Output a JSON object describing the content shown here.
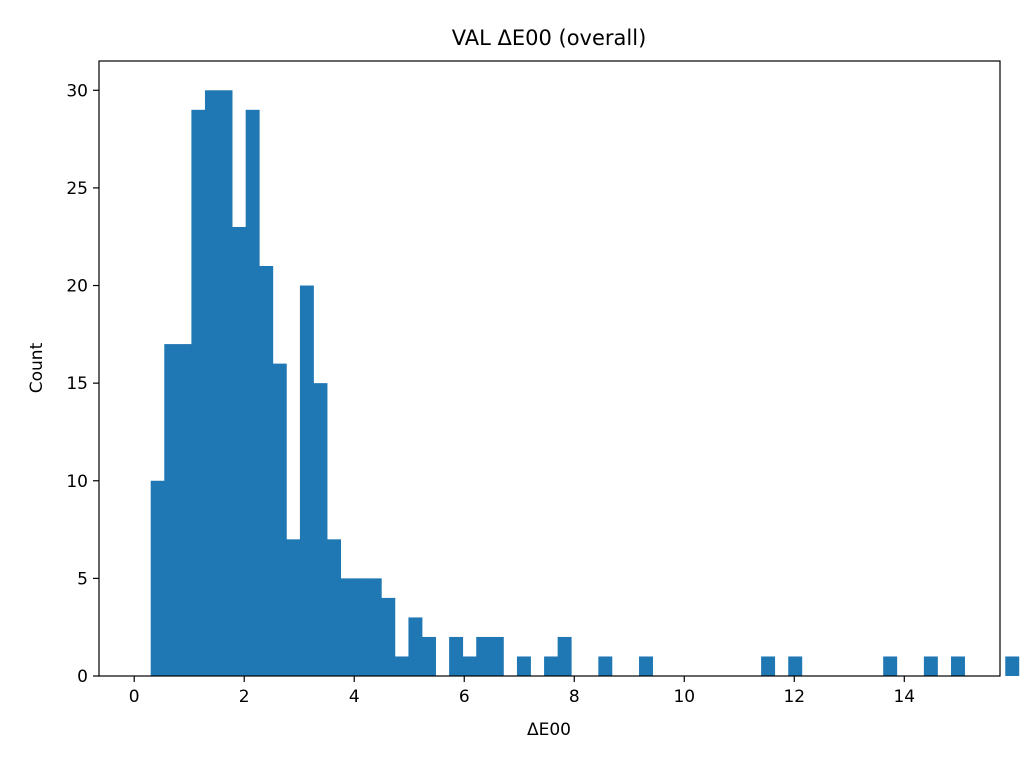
{
  "chart_data": {
    "type": "bar",
    "title": "VAL ΔE00 (overall)",
    "xlabel": "ΔE00",
    "ylabel": "Count",
    "xlim": [
      -0.64,
      15.74
    ],
    "ylim": [
      0,
      31.5
    ],
    "xticks": [
      0,
      2,
      4,
      6,
      8,
      10,
      12,
      14
    ],
    "yticks": [
      0,
      5,
      10,
      15,
      20,
      25,
      30
    ],
    "grid": false,
    "bar_color": "#1f77b4",
    "bin_start": 0.3,
    "bin_width": 0.2466,
    "counts": [
      10,
      17,
      17,
      29,
      30,
      30,
      23,
      29,
      21,
      16,
      7,
      20,
      15,
      7,
      5,
      5,
      5,
      4,
      1,
      3,
      2,
      0,
      2,
      1,
      2,
      2,
      0,
      1,
      0,
      1,
      2,
      0,
      0,
      1,
      0,
      0,
      1,
      0,
      0,
      0,
      0,
      0,
      0,
      0,
      0,
      1,
      0,
      1,
      0,
      0,
      0,
      0,
      0,
      0,
      1,
      0,
      0,
      1,
      0,
      1,
      0,
      0,
      0,
      1
    ]
  }
}
